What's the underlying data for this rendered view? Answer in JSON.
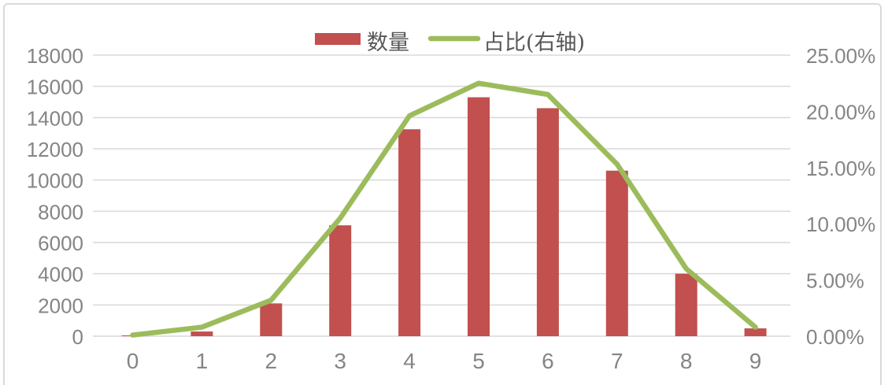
{
  "chart_data": {
    "type": "combo",
    "title": "",
    "categories": [
      "0",
      "1",
      "2",
      "3",
      "4",
      "5",
      "6",
      "7",
      "8",
      "9"
    ],
    "series": [
      {
        "name": "数量",
        "type": "bar",
        "axis": "left",
        "color": "#C1504E",
        "values": [
          50,
          300,
          2100,
          7100,
          13250,
          15300,
          14600,
          10600,
          4000,
          500
        ]
      },
      {
        "name": "占比(右轴)",
        "type": "line",
        "axis": "right",
        "unit": "%",
        "color": "#9CBC5C",
        "values": [
          0.1,
          0.8,
          3.2,
          10.5,
          19.6,
          22.5,
          21.5,
          15.3,
          6.0,
          0.8
        ]
      }
    ],
    "left_axis": {
      "min": 0,
      "max": 18000,
      "step": 2000,
      "tick_labels": [
        "0",
        "2000",
        "4000",
        "6000",
        "8000",
        "10000",
        "12000",
        "14000",
        "16000",
        "18000"
      ]
    },
    "right_axis": {
      "min": 0,
      "max": 25,
      "step": 5,
      "tick_labels": [
        "0.00%",
        "5.00%",
        "10.00%",
        "15.00%",
        "20.00%",
        "25.00%"
      ]
    },
    "x_axis": {
      "tick_labels": [
        "0",
        "1",
        "2",
        "3",
        "4",
        "5",
        "6",
        "7",
        "8",
        "9"
      ]
    },
    "legend": {
      "position": "top-center",
      "items": [
        "数量",
        "占比(右轴)"
      ]
    },
    "grid": true,
    "colors": {
      "grid": "#d9d9d9",
      "axis_text": "#858585",
      "legend_text": "#575757",
      "border": "#dadada",
      "background": "#ffffff"
    }
  }
}
